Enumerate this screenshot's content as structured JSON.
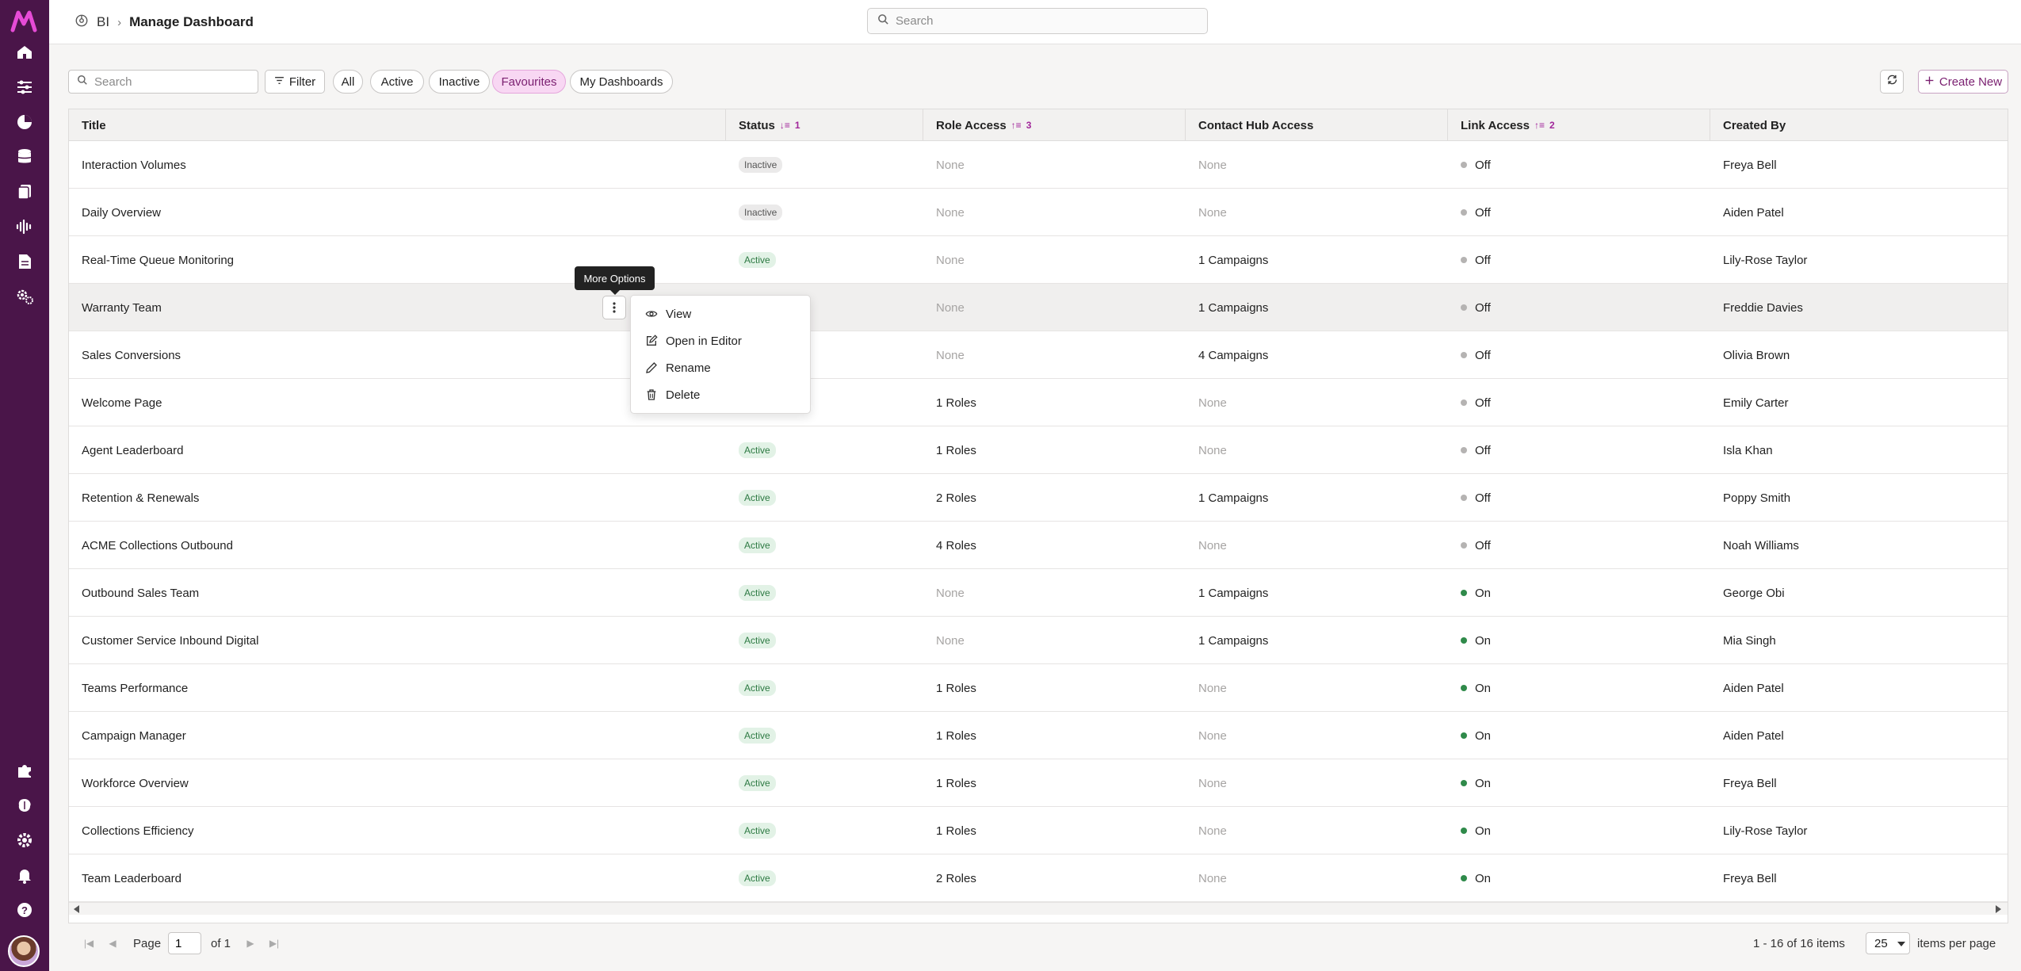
{
  "rail": {
    "icons": [
      "home-icon",
      "sliders-icon",
      "chart-icon",
      "database-icon",
      "document-stack-icon",
      "waveform-icon",
      "report-icon",
      "settings-users-icon"
    ],
    "bottom_icons": [
      "puzzle-icon",
      "brain-icon",
      "gear-icon",
      "bell-icon",
      "help-icon"
    ]
  },
  "header": {
    "breadcrumb_root": "BI",
    "breadcrumb_current": "Manage Dashboard",
    "search_placeholder": "Search"
  },
  "toolbar": {
    "search_placeholder": "Search",
    "filter_label": "Filter",
    "pills": [
      "All",
      "Active",
      "Inactive",
      "Favourites",
      "My Dashboards"
    ],
    "selected_pill": "Favourites",
    "create_label": "Create New"
  },
  "table": {
    "columns": [
      {
        "label": "Title",
        "sort": ""
      },
      {
        "label": "Status",
        "sort": "1"
      },
      {
        "label": "Role Access",
        "sort": "3"
      },
      {
        "label": "Contact Hub Access",
        "sort": ""
      },
      {
        "label": "Link Access",
        "sort": "2"
      },
      {
        "label": "Created By",
        "sort": ""
      }
    ],
    "rows": [
      {
        "title": "Interaction Volumes",
        "status": "Inactive",
        "role": "None",
        "hub": "None",
        "link": "Off",
        "by": "Freya Bell"
      },
      {
        "title": "Daily Overview",
        "status": "Inactive",
        "role": "None",
        "hub": "None",
        "link": "Off",
        "by": "Aiden Patel"
      },
      {
        "title": "Real-Time Queue Monitoring",
        "status": "Active",
        "role": "None",
        "hub": "1 Campaigns",
        "link": "Off",
        "by": "Lily-Rose Taylor"
      },
      {
        "title": "Warranty Team",
        "status": "",
        "role": "None",
        "hub": "1 Campaigns",
        "link": "Off",
        "by": "Freddie Davies"
      },
      {
        "title": "Sales Conversions",
        "status": "",
        "role": "None",
        "hub": "4 Campaigns",
        "link": "Off",
        "by": "Olivia Brown"
      },
      {
        "title": "Welcome Page",
        "status": "",
        "role": "1 Roles",
        "hub": "None",
        "link": "Off",
        "by": "Emily Carter"
      },
      {
        "title": "Agent Leaderboard",
        "status": "Active",
        "role": "1 Roles",
        "hub": "None",
        "link": "Off",
        "by": "Isla Khan"
      },
      {
        "title": "Retention & Renewals",
        "status": "Active",
        "role": "2 Roles",
        "hub": "1 Campaigns",
        "link": "Off",
        "by": "Poppy Smith"
      },
      {
        "title": "ACME Collections Outbound",
        "status": "Active",
        "role": "4 Roles",
        "hub": "None",
        "link": "Off",
        "by": "Noah Williams"
      },
      {
        "title": "Outbound Sales Team",
        "status": "Active",
        "role": "None",
        "hub": "1 Campaigns",
        "link": "On",
        "by": "George Obi"
      },
      {
        "title": "Customer Service Inbound Digital",
        "status": "Active",
        "role": "None",
        "hub": "1 Campaigns",
        "link": "On",
        "by": "Mia Singh"
      },
      {
        "title": "Teams Performance",
        "status": "Active",
        "role": "1 Roles",
        "hub": "None",
        "link": "On",
        "by": "Aiden Patel"
      },
      {
        "title": "Campaign Manager",
        "status": "Active",
        "role": "1 Roles",
        "hub": "None",
        "link": "On",
        "by": "Aiden Patel"
      },
      {
        "title": "Workforce Overview",
        "status": "Active",
        "role": "1 Roles",
        "hub": "None",
        "link": "On",
        "by": "Freya Bell"
      },
      {
        "title": "Collections Efficiency",
        "status": "Active",
        "role": "1 Roles",
        "hub": "None",
        "link": "On",
        "by": "Lily-Rose Taylor"
      },
      {
        "title": "Team Leaderboard",
        "status": "Active",
        "role": "2 Roles",
        "hub": "None",
        "link": "On",
        "by": "Freya Bell"
      }
    ],
    "hover_row": 3
  },
  "tooltip": "More Options",
  "menu": [
    {
      "label": "View",
      "icon": "eye-icon"
    },
    {
      "label": "Open in Editor",
      "icon": "edit-icon"
    },
    {
      "label": "Rename",
      "icon": "pencil-icon"
    },
    {
      "label": "Delete",
      "icon": "trash-icon"
    }
  ],
  "pagination": {
    "page_label": "Page",
    "page_value": "1",
    "of_label": "of 1",
    "range": "1 - 16 of 16 items",
    "per_page": "25",
    "per_page_label": "items per page"
  },
  "colors": {
    "rail": "#4a1549",
    "accent": "#a1279a",
    "active_green": "#2f8a4a"
  }
}
